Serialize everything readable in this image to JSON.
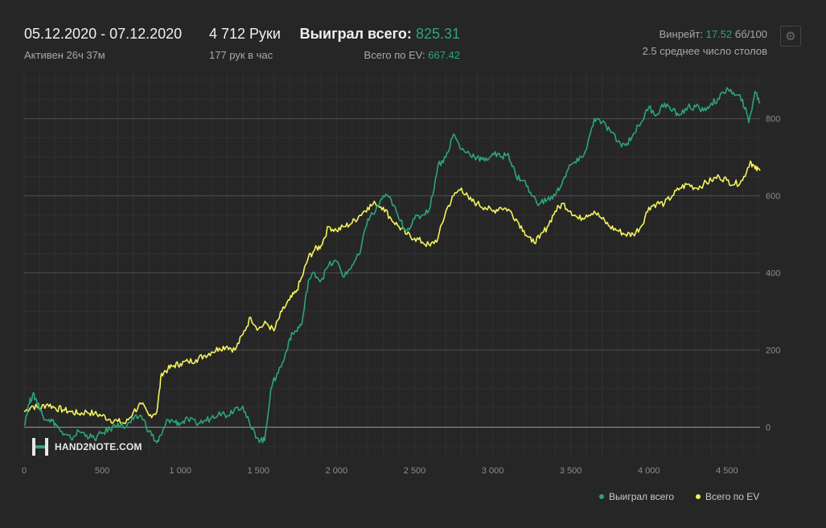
{
  "header": {
    "date_range": "05.12.2020 - 07.12.2020",
    "active": "Активен 26ч 37м",
    "hands": "4 712 Руки",
    "hands_rate": "177 рук в час",
    "won_label": "Выиграл всего:",
    "won_value": "825.31",
    "ev_label": "Всего по EV:",
    "ev_value": "667.42",
    "winrate_label": "Винрейт:",
    "winrate_value": "17.52",
    "winrate_unit": "бб/100",
    "avg_tables": "2.5 среднее число столов"
  },
  "watermark": {
    "text": "HAND2NOTE.COM",
    "icon": "h2n-logo-icon"
  },
  "colors": {
    "won": "#2ba677",
    "ev": "#f5f35d",
    "background": "#262626",
    "grid": "#3a3a3a"
  },
  "legend": {
    "won": "Выиграл всего",
    "ev": "Всего по EV",
    "placement": "bottom-right"
  },
  "chart_data": {
    "type": "line",
    "xlim": [
      0,
      4712
    ],
    "ylim": [
      -80,
      920
    ],
    "x_ticks": [
      {
        "value": 0,
        "label": "0"
      },
      {
        "value": 500,
        "label": "500"
      },
      {
        "value": 1000,
        "label": "1 000"
      },
      {
        "value": 1500,
        "label": "1 500"
      },
      {
        "value": 2000,
        "label": "2 000"
      },
      {
        "value": 2500,
        "label": "2 500"
      },
      {
        "value": 3000,
        "label": "3 000"
      },
      {
        "value": 3500,
        "label": "3 500"
      },
      {
        "value": 4000,
        "label": "4 000"
      },
      {
        "value": 4500,
        "label": "4 500"
      }
    ],
    "y_ticks": [
      {
        "value": 0,
        "label": "0"
      },
      {
        "value": 200,
        "label": "200"
      },
      {
        "value": 400,
        "label": "400"
      },
      {
        "value": 600,
        "label": "600"
      },
      {
        "value": 800,
        "label": "800"
      }
    ],
    "grid": true,
    "series": [
      {
        "name": "Выиграл всего",
        "color": "#2ba677",
        "points": [
          [
            0,
            5
          ],
          [
            30,
            60
          ],
          [
            55,
            85
          ],
          [
            80,
            70
          ],
          [
            100,
            50
          ],
          [
            120,
            30
          ],
          [
            160,
            20
          ],
          [
            200,
            10
          ],
          [
            250,
            -20
          ],
          [
            300,
            -30
          ],
          [
            350,
            -10
          ],
          [
            400,
            -20
          ],
          [
            450,
            -30
          ],
          [
            500,
            -15
          ],
          [
            550,
            -5
          ],
          [
            600,
            10
          ],
          [
            650,
            0
          ],
          [
            700,
            20
          ],
          [
            750,
            30
          ],
          [
            800,
            -10
          ],
          [
            850,
            -40
          ],
          [
            880,
            -20
          ],
          [
            920,
            20
          ],
          [
            960,
            15
          ],
          [
            1000,
            10
          ],
          [
            1050,
            20
          ],
          [
            1100,
            10
          ],
          [
            1150,
            15
          ],
          [
            1200,
            25
          ],
          [
            1250,
            40
          ],
          [
            1300,
            30
          ],
          [
            1350,
            50
          ],
          [
            1400,
            55
          ],
          [
            1450,
            0
          ],
          [
            1500,
            -30
          ],
          [
            1540,
            -35
          ],
          [
            1580,
            100
          ],
          [
            1620,
            140
          ],
          [
            1660,
            170
          ],
          [
            1700,
            230
          ],
          [
            1740,
            250
          ],
          [
            1780,
            270
          ],
          [
            1820,
            380
          ],
          [
            1860,
            400
          ],
          [
            1900,
            380
          ],
          [
            1950,
            420
          ],
          [
            2000,
            430
          ],
          [
            2050,
            390
          ],
          [
            2100,
            420
          ],
          [
            2150,
            450
          ],
          [
            2200,
            540
          ],
          [
            2250,
            560
          ],
          [
            2300,
            600
          ],
          [
            2350,
            590
          ],
          [
            2400,
            540
          ],
          [
            2450,
            510
          ],
          [
            2500,
            540
          ],
          [
            2550,
            550
          ],
          [
            2600,
            570
          ],
          [
            2650,
            680
          ],
          [
            2700,
            700
          ],
          [
            2750,
            760
          ],
          [
            2800,
            720
          ],
          [
            2850,
            710
          ],
          [
            2900,
            700
          ],
          [
            2950,
            690
          ],
          [
            3000,
            710
          ],
          [
            3050,
            700
          ],
          [
            3100,
            710
          ],
          [
            3150,
            650
          ],
          [
            3200,
            640
          ],
          [
            3250,
            600
          ],
          [
            3300,
            580
          ],
          [
            3350,
            590
          ],
          [
            3400,
            600
          ],
          [
            3450,
            640
          ],
          [
            3500,
            680
          ],
          [
            3550,
            690
          ],
          [
            3600,
            720
          ],
          [
            3650,
            800
          ],
          [
            3700,
            790
          ],
          [
            3750,
            770
          ],
          [
            3800,
            740
          ],
          [
            3850,
            730
          ],
          [
            3900,
            760
          ],
          [
            3950,
            790
          ],
          [
            4000,
            830
          ],
          [
            4050,
            810
          ],
          [
            4100,
            840
          ],
          [
            4150,
            820
          ],
          [
            4200,
            810
          ],
          [
            4250,
            830
          ],
          [
            4300,
            830
          ],
          [
            4350,
            820
          ],
          [
            4400,
            840
          ],
          [
            4450,
            850
          ],
          [
            4500,
            880
          ],
          [
            4550,
            860
          ],
          [
            4600,
            850
          ],
          [
            4640,
            790
          ],
          [
            4680,
            870
          ],
          [
            4712,
            840
          ]
        ]
      },
      {
        "name": "Всего по EV",
        "color": "#f5f35d",
        "points": [
          [
            0,
            40
          ],
          [
            50,
            55
          ],
          [
            100,
            50
          ],
          [
            150,
            60
          ],
          [
            200,
            50
          ],
          [
            250,
            45
          ],
          [
            300,
            40
          ],
          [
            350,
            35
          ],
          [
            400,
            40
          ],
          [
            450,
            35
          ],
          [
            500,
            30
          ],
          [
            550,
            20
          ],
          [
            600,
            15
          ],
          [
            650,
            10
          ],
          [
            700,
            40
          ],
          [
            750,
            60
          ],
          [
            800,
            30
          ],
          [
            850,
            40
          ],
          [
            880,
            140
          ],
          [
            920,
            150
          ],
          [
            960,
            160
          ],
          [
            1000,
            165
          ],
          [
            1050,
            170
          ],
          [
            1100,
            175
          ],
          [
            1150,
            185
          ],
          [
            1200,
            195
          ],
          [
            1250,
            205
          ],
          [
            1300,
            210
          ],
          [
            1350,
            200
          ],
          [
            1400,
            240
          ],
          [
            1450,
            285
          ],
          [
            1500,
            255
          ],
          [
            1550,
            270
          ],
          [
            1600,
            250
          ],
          [
            1650,
            300
          ],
          [
            1700,
            330
          ],
          [
            1740,
            350
          ],
          [
            1780,
            390
          ],
          [
            1820,
            440
          ],
          [
            1860,
            460
          ],
          [
            1900,
            470
          ],
          [
            1950,
            520
          ],
          [
            2000,
            510
          ],
          [
            2050,
            520
          ],
          [
            2100,
            530
          ],
          [
            2150,
            550
          ],
          [
            2200,
            570
          ],
          [
            2250,
            580
          ],
          [
            2300,
            570
          ],
          [
            2350,
            540
          ],
          [
            2400,
            520
          ],
          [
            2450,
            500
          ],
          [
            2500,
            490
          ],
          [
            2550,
            480
          ],
          [
            2600,
            470
          ],
          [
            2650,
            490
          ],
          [
            2700,
            560
          ],
          [
            2750,
            600
          ],
          [
            2800,
            620
          ],
          [
            2850,
            590
          ],
          [
            2900,
            580
          ],
          [
            2950,
            570
          ],
          [
            3000,
            560
          ],
          [
            3050,
            570
          ],
          [
            3100,
            565
          ],
          [
            3150,
            540
          ],
          [
            3200,
            510
          ],
          [
            3250,
            480
          ],
          [
            3300,
            490
          ],
          [
            3350,
            520
          ],
          [
            3400,
            560
          ],
          [
            3450,
            580
          ],
          [
            3500,
            560
          ],
          [
            3550,
            540
          ],
          [
            3600,
            550
          ],
          [
            3650,
            560
          ],
          [
            3700,
            540
          ],
          [
            3750,
            520
          ],
          [
            3800,
            510
          ],
          [
            3850,
            500
          ],
          [
            3900,
            500
          ],
          [
            3950,
            520
          ],
          [
            4000,
            570
          ],
          [
            4050,
            580
          ],
          [
            4100,
            580
          ],
          [
            4150,
            600
          ],
          [
            4200,
            620
          ],
          [
            4250,
            630
          ],
          [
            4300,
            620
          ],
          [
            4350,
            630
          ],
          [
            4400,
            640
          ],
          [
            4450,
            650
          ],
          [
            4500,
            640
          ],
          [
            4550,
            630
          ],
          [
            4600,
            640
          ],
          [
            4650,
            690
          ],
          [
            4680,
            670
          ],
          [
            4712,
            665
          ]
        ]
      }
    ]
  }
}
